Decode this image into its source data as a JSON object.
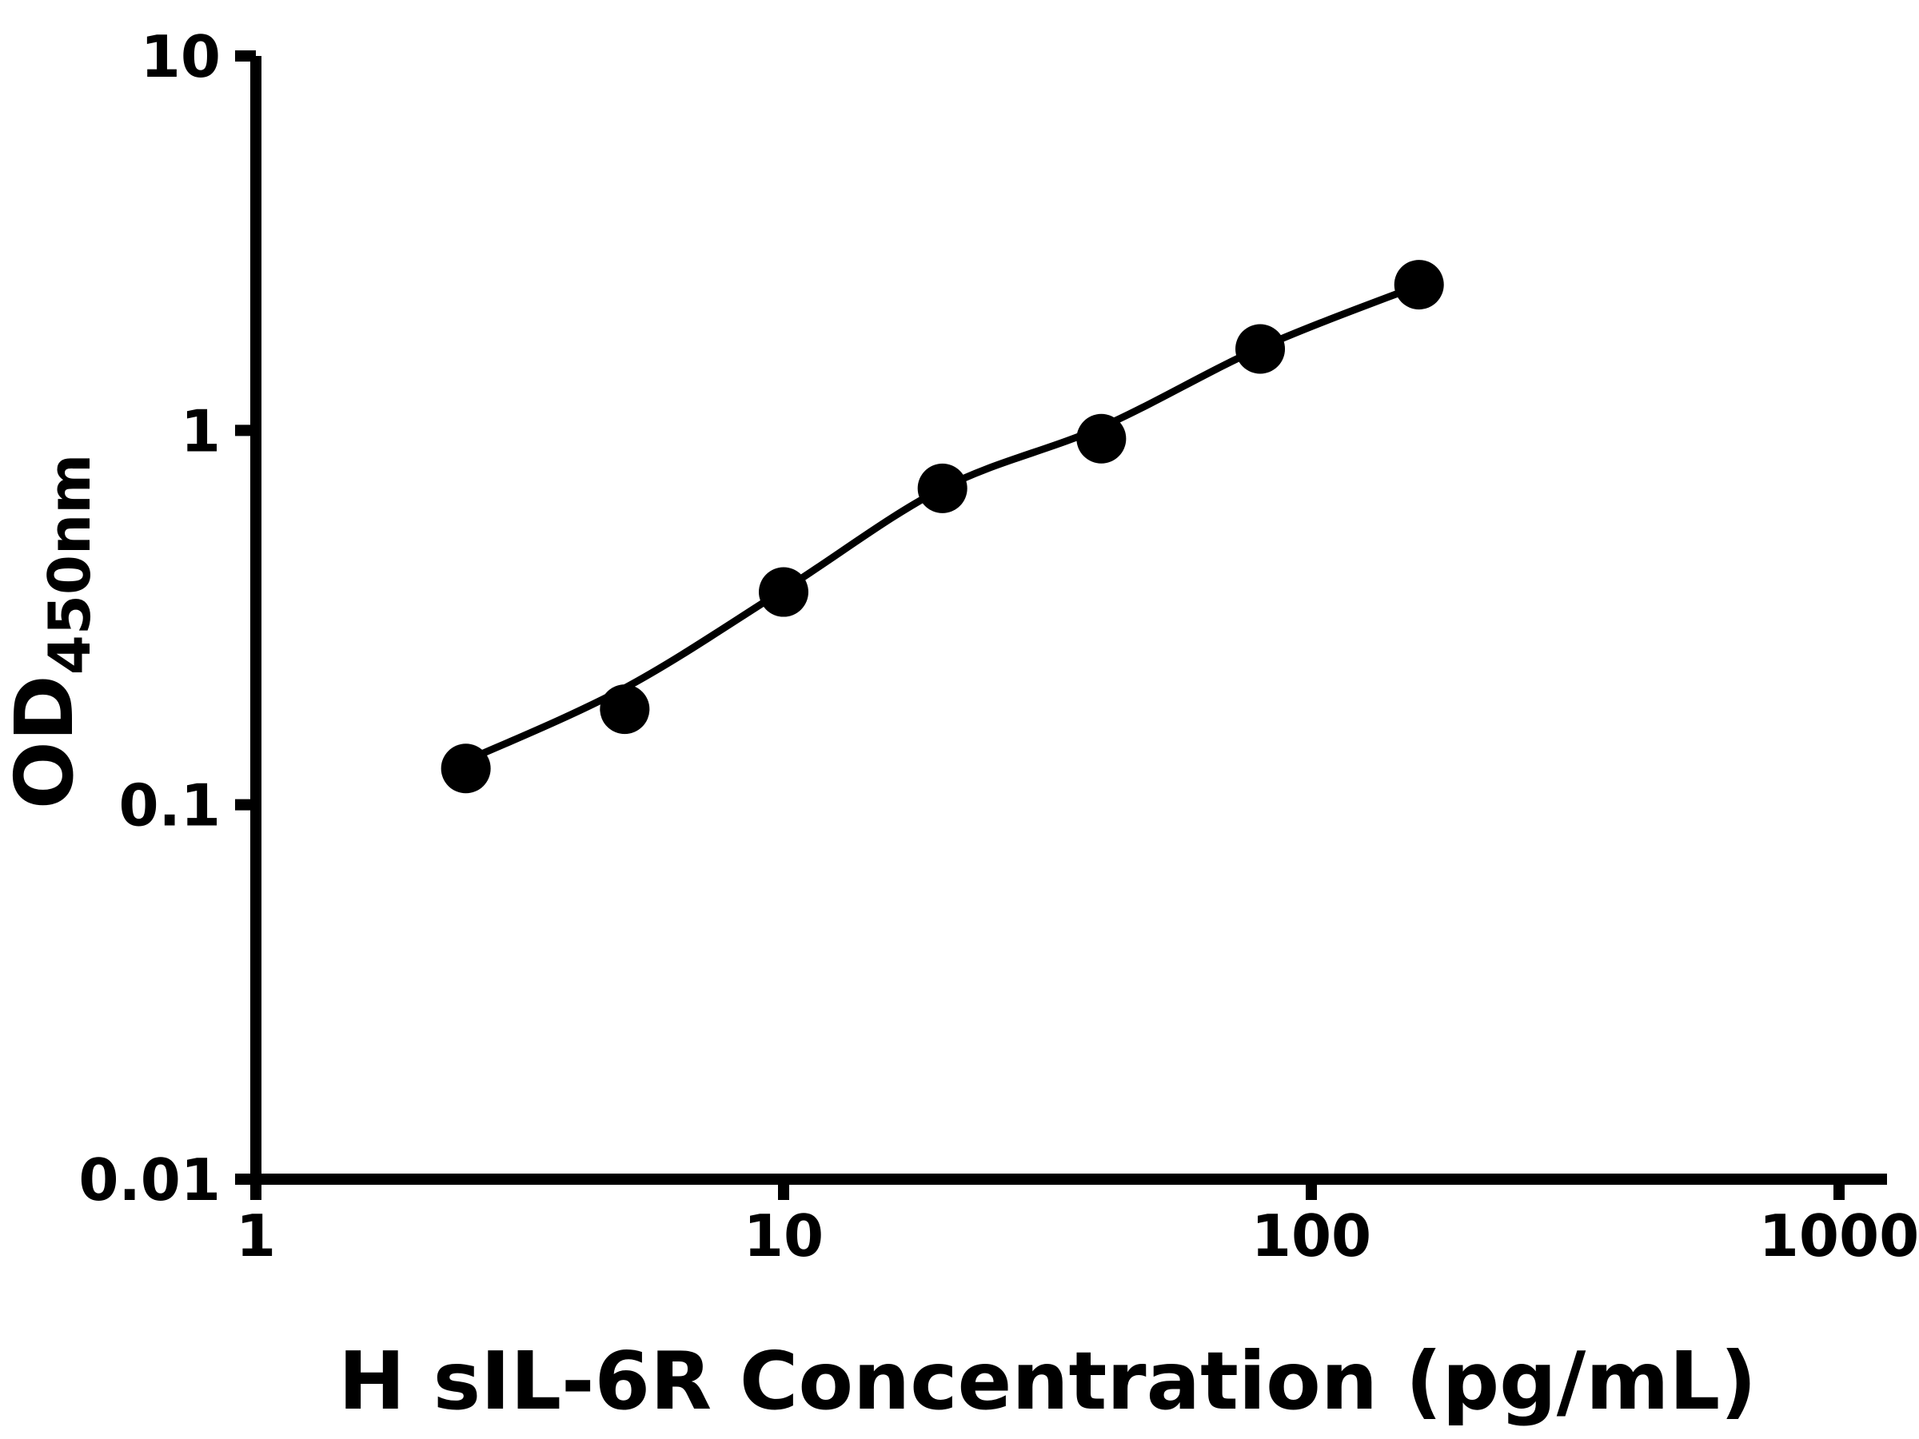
{
  "chart_data": {
    "type": "scatter",
    "title": "",
    "xlabel": "H sIL-6R Concentration (pg/mL)",
    "ylabel": "OD450nm",
    "ylabel_base": "OD",
    "ylabel_subscript": "450nm",
    "x_scale": "log",
    "y_scale": "log",
    "xlim": [
      1,
      1000
    ],
    "ylim": [
      0.01,
      10
    ],
    "x_ticks": [
      1,
      10,
      100,
      1000
    ],
    "x_tick_labels": [
      "1",
      "10",
      "100",
      "1000"
    ],
    "y_ticks": [
      0.01,
      0.1,
      1,
      10
    ],
    "y_tick_labels": [
      "0.01",
      "0.1",
      "1",
      "10"
    ],
    "points": {
      "x": [
        2.5,
        5,
        10,
        20,
        40,
        80,
        160
      ],
      "y": [
        0.125,
        0.18,
        0.37,
        0.7,
        0.95,
        1.65,
        2.45
      ]
    },
    "fit_curve": {
      "x": [
        2.5,
        5,
        10,
        20,
        40,
        80,
        160
      ],
      "y": [
        0.131,
        0.205,
        0.375,
        0.7,
        1.02,
        1.66,
        2.44
      ]
    },
    "marker": {
      "shape": "circle",
      "color": "#000000"
    },
    "line_color": "#000000",
    "axis_color": "#000000",
    "background": "#ffffff",
    "grid": false,
    "legend": null
  }
}
